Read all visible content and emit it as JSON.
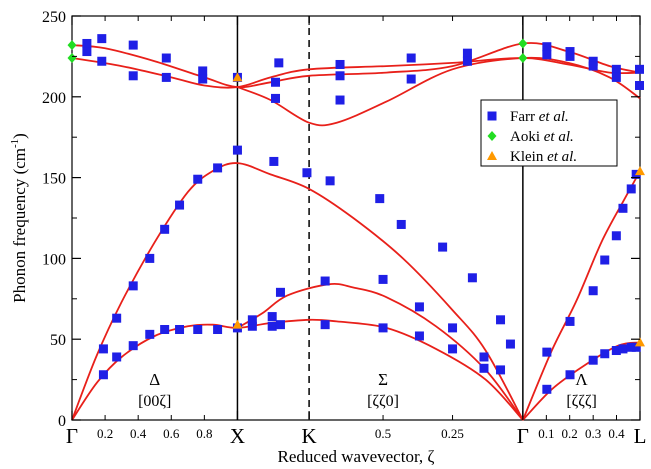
{
  "chart_data": {
    "type": "scatter",
    "title": "",
    "ylabel": "Phonon frequency (cm",
    "ylabel_sup": "-1",
    "ylabel_close": ")",
    "xlabel": "Reduced wavevector, ζ",
    "ylim": [
      0,
      250
    ],
    "yticks": [
      0,
      50,
      100,
      150,
      200,
      250
    ],
    "grid": false,
    "legend_position": "top-right",
    "x_domain": [
      0,
      3.433
    ],
    "symmetry_points": [
      {
        "label": "Γ",
        "x": 0
      },
      {
        "label": "X",
        "x": 1
      },
      {
        "label": "K",
        "x": 1.433
      },
      {
        "label": "Γ",
        "x": 2.725
      },
      {
        "label": "L",
        "x": 3.433
      }
    ],
    "vertical_lines": [
      {
        "x": 1,
        "style": "solid"
      },
      {
        "x": 1.433,
        "style": "dashed"
      },
      {
        "x": 2.725,
        "style": "solid"
      }
    ],
    "minor_tick_labels": [
      {
        "label": "0.2",
        "x": 0.2
      },
      {
        "label": "0.4",
        "x": 0.4
      },
      {
        "label": "0.6",
        "x": 0.6
      },
      {
        "label": "0.8",
        "x": 0.8
      },
      {
        "label": "0.5",
        "x": 1.88
      },
      {
        "label": "0.25",
        "x": 2.3
      },
      {
        "label": "0.1",
        "x": 2.867
      },
      {
        "label": "0.2",
        "x": 3.008
      },
      {
        "label": "0.3",
        "x": 3.15
      },
      {
        "label": "0.4",
        "x": 3.291
      }
    ],
    "region_labels": [
      {
        "symbol": "Δ",
        "direction": "[00ζ]",
        "x": 0.5
      },
      {
        "symbol": "Σ",
        "direction": "[ζζ0]",
        "x": 1.88
      },
      {
        "symbol": "Λ",
        "direction": "[ζζζ]",
        "x": 3.08
      }
    ],
    "series": [
      {
        "name": "Farr et al.",
        "marker": "square",
        "color": "#1f1fe6",
        "points": [
          [
            0.09,
            233
          ],
          [
            0.09,
            228
          ],
          [
            0.18,
            236
          ],
          [
            0.18,
            222
          ],
          [
            0.37,
            232
          ],
          [
            0.37,
            213
          ],
          [
            0.57,
            224
          ],
          [
            0.57,
            212
          ],
          [
            0.79,
            216
          ],
          [
            0.79,
            211
          ],
          [
            1,
            212
          ],
          [
            1.23,
            209
          ],
          [
            1.23,
            199
          ],
          [
            1.25,
            221
          ],
          [
            1.62,
            220
          ],
          [
            1.62,
            213
          ],
          [
            1.62,
            198
          ],
          [
            2.05,
            224
          ],
          [
            2.05,
            211
          ],
          [
            2.39,
            227
          ],
          [
            2.39,
            222
          ],
          [
            0.19,
            28
          ],
          [
            0.27,
            39
          ],
          [
            0.37,
            46
          ],
          [
            0.47,
            53
          ],
          [
            0.56,
            56
          ],
          [
            0.65,
            56
          ],
          [
            0.76,
            56
          ],
          [
            0.88,
            56
          ],
          [
            1,
            57
          ],
          [
            0.19,
            44
          ],
          [
            0.27,
            63
          ],
          [
            0.37,
            83
          ],
          [
            0.47,
            100
          ],
          [
            0.56,
            118
          ],
          [
            0.65,
            133
          ],
          [
            0.76,
            149
          ],
          [
            0.88,
            156
          ],
          [
            1,
            167
          ],
          [
            1.09,
            58
          ],
          [
            1.21,
            58
          ],
          [
            1.26,
            59
          ],
          [
            1.53,
            59
          ],
          [
            1.88,
            57
          ],
          [
            2.1,
            52
          ],
          [
            2.3,
            44
          ],
          [
            2.49,
            32
          ],
          [
            2.59,
            31
          ],
          [
            1.09,
            62
          ],
          [
            1.21,
            64
          ],
          [
            1.26,
            79
          ],
          [
            1.53,
            86
          ],
          [
            1.88,
            87
          ],
          [
            2.1,
            70
          ],
          [
            2.3,
            57
          ],
          [
            2.49,
            39
          ],
          [
            1.22,
            160
          ],
          [
            1.42,
            153
          ],
          [
            1.56,
            148
          ],
          [
            1.86,
            137
          ],
          [
            1.99,
            121
          ],
          [
            2.24,
            107
          ],
          [
            2.42,
            88
          ],
          [
            2.59,
            62
          ],
          [
            2.65,
            47
          ],
          [
            2.87,
            19
          ],
          [
            3.01,
            28
          ],
          [
            3.15,
            37
          ],
          [
            3.22,
            41
          ],
          [
            3.29,
            43
          ],
          [
            3.33,
            44
          ],
          [
            3.38,
            45
          ],
          [
            3.41,
            45
          ],
          [
            2.87,
            42
          ],
          [
            3.01,
            61
          ],
          [
            3.15,
            80
          ],
          [
            3.22,
            99
          ],
          [
            3.29,
            114
          ],
          [
            3.33,
            131
          ],
          [
            3.38,
            143
          ],
          [
            3.41,
            152
          ],
          [
            2.87,
            231
          ],
          [
            2.87,
            226
          ],
          [
            3.01,
            228
          ],
          [
            3.01,
            225
          ],
          [
            3.15,
            222
          ],
          [
            3.15,
            219
          ],
          [
            3.29,
            217
          ],
          [
            3.29,
            212
          ],
          [
            3.43,
            217
          ],
          [
            3.43,
            207
          ]
        ]
      },
      {
        "name": "Aoki et al.",
        "marker": "diamond",
        "color": "#22dd22",
        "points": [
          [
            0,
            232
          ],
          [
            0,
            224
          ],
          [
            2.725,
            233
          ],
          [
            2.725,
            224
          ]
        ]
      },
      {
        "name": "Klein et al.",
        "marker": "triangle",
        "color": "#ff9900",
        "points": [
          [
            1,
            212
          ],
          [
            1,
            59
          ],
          [
            3.433,
            48
          ],
          [
            3.433,
            154
          ]
        ]
      }
    ],
    "curves_color": "#e8201a",
    "curves": [
      [
        [
          0,
          232
        ],
        [
          0.2,
          230
        ],
        [
          0.5,
          222
        ],
        [
          0.8,
          212
        ],
        [
          1,
          206
        ],
        [
          1.2,
          209
        ],
        [
          1.433,
          213
        ],
        [
          1.9,
          215
        ],
        [
          2.3,
          219
        ],
        [
          2.725,
          233
        ],
        [
          3.0,
          228
        ],
        [
          3.25,
          219
        ],
        [
          3.433,
          215
        ]
      ],
      [
        [
          0,
          224
        ],
        [
          0.3,
          219
        ],
        [
          0.6,
          212
        ],
        [
          0.8,
          207
        ],
        [
          1,
          206
        ],
        [
          1.2,
          212
        ],
        [
          1.433,
          217
        ],
        [
          1.9,
          219
        ],
        [
          2.3,
          221
        ],
        [
          2.725,
          224
        ],
        [
          3.0,
          220
        ],
        [
          3.25,
          215
        ],
        [
          3.433,
          215
        ]
      ],
      [
        [
          1,
          206
        ],
        [
          1.2,
          198
        ],
        [
          1.433,
          184
        ],
        [
          1.6,
          184
        ],
        [
          1.9,
          197
        ],
        [
          2.3,
          217
        ],
        [
          2.725,
          224
        ],
        [
          3.0,
          221
        ],
        [
          3.25,
          212
        ],
        [
          3.433,
          199
        ]
      ],
      [
        [
          0,
          0
        ],
        [
          0.15,
          23
        ],
        [
          0.3,
          39
        ],
        [
          0.5,
          52
        ],
        [
          0.7,
          58
        ],
        [
          0.85,
          59
        ],
        [
          1,
          57
        ],
        [
          1.2,
          60
        ],
        [
          1.433,
          62
        ],
        [
          1.6,
          61
        ],
        [
          1.9,
          57
        ],
        [
          2.2,
          44
        ],
        [
          2.5,
          25
        ],
        [
          2.725,
          0
        ]
      ],
      [
        [
          0,
          0
        ],
        [
          0.15,
          40
        ],
        [
          0.3,
          73
        ],
        [
          0.5,
          110
        ],
        [
          0.7,
          141
        ],
        [
          0.85,
          154
        ],
        [
          1,
          159
        ],
        [
          1.2,
          152
        ],
        [
          1.433,
          143
        ],
        [
          1.7,
          125
        ],
        [
          2.0,
          100
        ],
        [
          2.3,
          68
        ],
        [
          2.5,
          43
        ],
        [
          2.725,
          0
        ]
      ],
      [
        [
          1,
          57
        ],
        [
          1.15,
          66
        ],
        [
          1.3,
          77
        ],
        [
          1.55,
          84
        ],
        [
          1.7,
          82
        ],
        [
          1.9,
          76
        ],
        [
          2.2,
          58
        ],
        [
          2.5,
          31
        ],
        [
          2.725,
          0
        ]
      ],
      [
        [
          2.725,
          0
        ],
        [
          2.9,
          19
        ],
        [
          3.1,
          34
        ],
        [
          3.3,
          46
        ],
        [
          3.433,
          48
        ]
      ],
      [
        [
          2.725,
          0
        ],
        [
          2.9,
          43
        ],
        [
          3.05,
          74
        ],
        [
          3.2,
          110
        ],
        [
          3.33,
          135
        ],
        [
          3.433,
          154
        ]
      ]
    ]
  }
}
